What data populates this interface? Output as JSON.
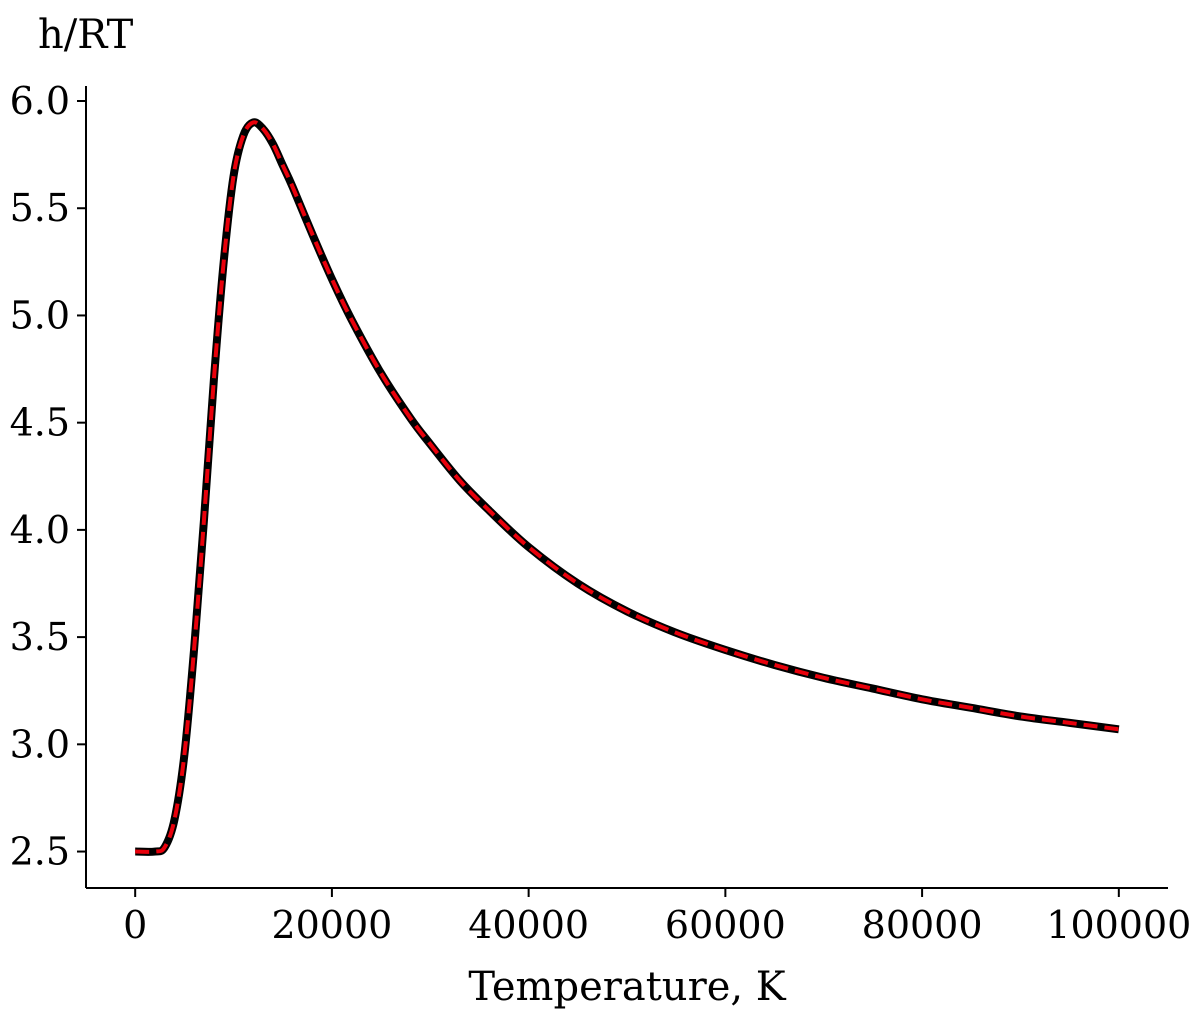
{
  "chart_data": {
    "type": "line",
    "title": "",
    "xlabel": "Temperature, K",
    "ylabel": "h/RT",
    "xlim": [
      -5000,
      105000
    ],
    "ylim": [
      2.33,
      6.07
    ],
    "x_ticks": [
      0,
      20000,
      40000,
      60000,
      80000,
      100000
    ],
    "x_tick_labels": [
      "0",
      "20000",
      "40000",
      "60000",
      "80000",
      "100000"
    ],
    "y_ticks": [
      2.5,
      3.0,
      3.5,
      4.0,
      4.5,
      5.0,
      5.5,
      6.0
    ],
    "y_tick_labels": [
      "2.5",
      "3.0",
      "3.5",
      "4.0",
      "4.5",
      "5.0",
      "5.5",
      "6.0"
    ],
    "grid": false,
    "legend": "none",
    "series": [
      {
        "style": "solid",
        "color": "#000000",
        "x": [
          0,
          2000,
          3000,
          4000,
          5000,
          6000,
          7000,
          8000,
          9000,
          10000,
          11000,
          12000,
          13000,
          14000,
          15000,
          16000,
          18000,
          20000,
          22000,
          25000,
          28000,
          30000,
          33000,
          36000,
          40000,
          45000,
          50000,
          55000,
          60000,
          65000,
          70000,
          75000,
          80000,
          85000,
          90000,
          95000,
          100000
        ],
        "y": [
          2.5,
          2.5,
          2.52,
          2.65,
          2.95,
          3.45,
          4.05,
          4.7,
          5.25,
          5.65,
          5.84,
          5.9,
          5.87,
          5.8,
          5.7,
          5.6,
          5.38,
          5.17,
          4.98,
          4.73,
          4.52,
          4.4,
          4.23,
          4.09,
          3.92,
          3.75,
          3.62,
          3.52,
          3.44,
          3.37,
          3.31,
          3.26,
          3.21,
          3.17,
          3.13,
          3.1,
          3.07
        ]
      },
      {
        "style": "dashed",
        "color": "#e8000b",
        "x": [
          0,
          2000,
          3000,
          4000,
          5000,
          6000,
          7000,
          8000,
          9000,
          10000,
          11000,
          12000,
          13000,
          14000,
          15000,
          16000,
          18000,
          20000,
          22000,
          25000,
          28000,
          30000,
          33000,
          36000,
          40000,
          45000,
          50000,
          55000,
          60000,
          65000,
          70000,
          75000,
          80000,
          85000,
          90000,
          95000,
          100000
        ],
        "y": [
          2.5,
          2.5,
          2.52,
          2.65,
          2.95,
          3.45,
          4.05,
          4.7,
          5.25,
          5.65,
          5.84,
          5.9,
          5.87,
          5.8,
          5.7,
          5.6,
          5.38,
          5.17,
          4.98,
          4.73,
          4.52,
          4.4,
          4.23,
          4.09,
          3.92,
          3.75,
          3.62,
          3.52,
          3.44,
          3.37,
          3.31,
          3.26,
          3.21,
          3.17,
          3.13,
          3.1,
          3.07
        ]
      }
    ]
  }
}
